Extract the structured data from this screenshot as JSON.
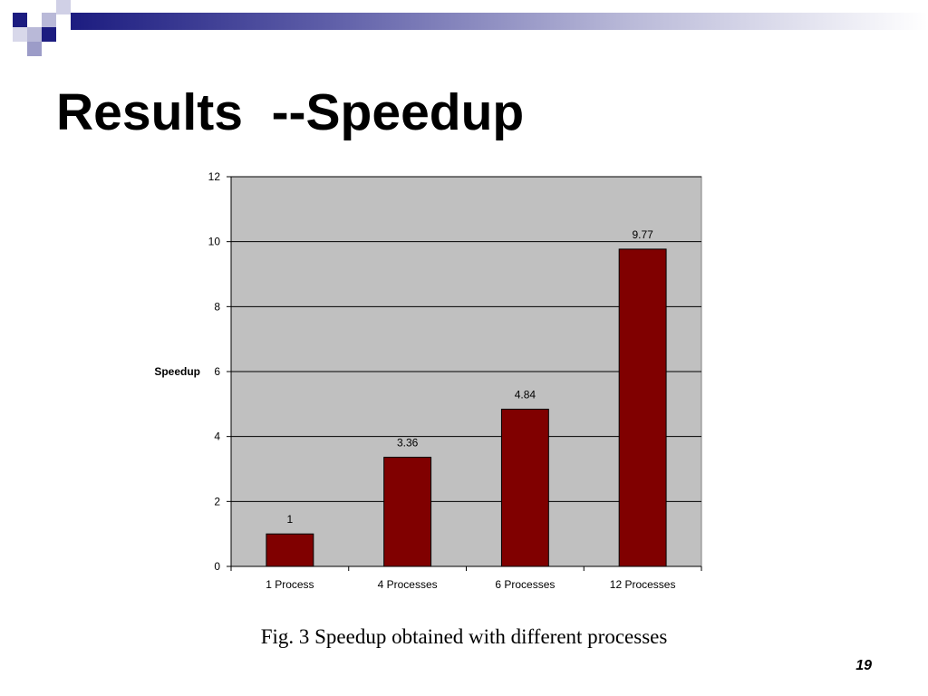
{
  "slide": {
    "title": "Results  --Speedup",
    "caption": "Fig. 3 Speedup obtained with different processes",
    "page_number": "19"
  },
  "colors": {
    "bar": "#800000",
    "plot_background": "#c0c0c0",
    "gridline": "#000000",
    "decoration_dark": "#1c1c80",
    "decoration_light": "#b9b9d8"
  },
  "chart_data": {
    "type": "bar",
    "categories": [
      "1 Process",
      "4 Processes",
      "6 Processes",
      "12 Processes"
    ],
    "values": [
      1,
      3.36,
      4.84,
      9.77
    ],
    "data_labels": [
      "1",
      "3.36",
      "4.84",
      "9.77"
    ],
    "xlabel": "",
    "ylabel": "Speedup",
    "ylim": [
      0,
      12
    ],
    "yticks": [
      0,
      2,
      4,
      6,
      8,
      10,
      12
    ],
    "grid": true,
    "legend": "none"
  }
}
